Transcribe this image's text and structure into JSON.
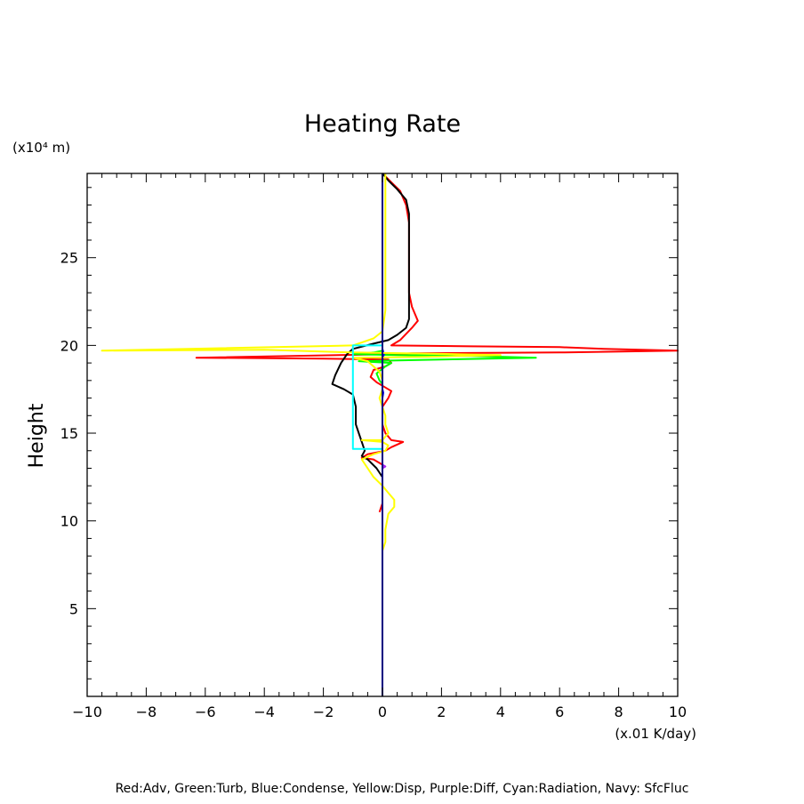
{
  "chart_data": {
    "type": "line",
    "title": "Heating Rate",
    "xlabel": "",
    "ylabel": "Height",
    "x_unit": "(x.01 K/day)",
    "y_unit": "(x10⁴ m)",
    "xlim": [
      -10,
      10
    ],
    "ylim": [
      0,
      29.8
    ],
    "x_ticks": [
      -10,
      -8,
      -6,
      -4,
      -2,
      0,
      2,
      4,
      6,
      8,
      10
    ],
    "x_tick_labels": [
      "−10",
      "−8",
      "−6",
      "−4",
      "−2",
      "0",
      "2",
      "4",
      "6",
      "8",
      "10"
    ],
    "y_ticks": [
      5,
      10,
      15,
      20,
      25
    ],
    "y_tick_labels": [
      "5",
      "10",
      "15",
      "20",
      "25"
    ],
    "grid": false,
    "legend_note": "Red:Adv, Green:Turb, Blue:Condense, Yellow:Disp, Purple:Diff, Cyan:Radiation, Navy: SfcFluc",
    "series": [
      {
        "color": "#ff0000",
        "points": [
          [
            0,
            29.8
          ],
          [
            0.3,
            29.3
          ],
          [
            0.6,
            28.8
          ],
          [
            0.8,
            28.0
          ],
          [
            0.9,
            27
          ],
          [
            0.9,
            25
          ],
          [
            0.9,
            23
          ],
          [
            1.0,
            22.2
          ],
          [
            1.2,
            21.4
          ],
          [
            1.0,
            21.0
          ],
          [
            0.6,
            20.3
          ],
          [
            0.3,
            20.0
          ],
          [
            3,
            19.95
          ],
          [
            6,
            19.9
          ],
          [
            7.5,
            19.8
          ],
          [
            10,
            19.7
          ],
          [
            6,
            19.6
          ],
          [
            1,
            19.55
          ],
          [
            0.3,
            19.5
          ],
          [
            -6.3,
            19.3
          ],
          [
            -2,
            19.25
          ],
          [
            0.2,
            19.2
          ],
          [
            0.3,
            19.0
          ],
          [
            0.1,
            18.8
          ],
          [
            -0.3,
            18.6
          ],
          [
            -0.4,
            18.2
          ],
          [
            -0.2,
            17.9
          ],
          [
            0.1,
            17.6
          ],
          [
            0.3,
            17.4
          ],
          [
            0.2,
            17.0
          ],
          [
            0,
            16.5
          ],
          [
            0,
            15.5
          ],
          [
            0.1,
            15.0
          ],
          [
            0.3,
            14.6
          ],
          [
            0.7,
            14.5
          ],
          [
            0.3,
            14.2
          ],
          [
            0.1,
            14.0
          ],
          [
            -0.5,
            13.8
          ],
          [
            -0.7,
            13.6
          ],
          [
            -0.3,
            13.5
          ],
          [
            0,
            13.2
          ],
          [
            0,
            11
          ],
          [
            -0.1,
            10.5
          ]
        ]
      },
      {
        "color": "#000000",
        "points": [
          [
            0,
            29.8
          ],
          [
            0.2,
            29.4
          ],
          [
            0.5,
            28.9
          ],
          [
            0.8,
            28.3
          ],
          [
            0.9,
            27.5
          ],
          [
            0.9,
            25.5
          ],
          [
            0.9,
            23
          ],
          [
            0.9,
            21.5
          ],
          [
            0.8,
            21.0
          ],
          [
            0.5,
            20.6
          ],
          [
            0.2,
            20.3
          ],
          [
            -0.3,
            20.1
          ],
          [
            -1.0,
            19.8
          ],
          [
            -1.2,
            19.5
          ],
          [
            -1.4,
            19.0
          ],
          [
            -1.6,
            18.3
          ],
          [
            -1.7,
            17.8
          ],
          [
            -1.3,
            17.5
          ],
          [
            -1.0,
            17.2
          ],
          [
            -0.9,
            16.5
          ],
          [
            -0.9,
            15.5
          ],
          [
            -0.8,
            15.0
          ],
          [
            -0.7,
            14.5
          ],
          [
            -0.6,
            14.0
          ],
          [
            -0.7,
            13.7
          ],
          [
            -0.5,
            13.5
          ],
          [
            -0.2,
            13.0
          ],
          [
            0,
            12.5
          ],
          [
            0,
            8
          ]
        ]
      },
      {
        "color": "#00ff00",
        "points": [
          [
            0,
            19.7
          ],
          [
            -0.3,
            19.6
          ],
          [
            -1.0,
            19.5
          ],
          [
            0.5,
            19.45
          ],
          [
            3,
            19.4
          ],
          [
            5.2,
            19.3
          ],
          [
            2,
            19.2
          ],
          [
            -0.8,
            19.1
          ],
          [
            0.3,
            19.0
          ],
          [
            0.1,
            18.8
          ],
          [
            -0.2,
            18.4
          ],
          [
            -0.1,
            18.0
          ],
          [
            0,
            17.8
          ],
          [
            0,
            14.5
          ]
        ]
      },
      {
        "color": "#0000ff",
        "points": [
          [
            0,
            19.8
          ],
          [
            0.05,
            19.5
          ],
          [
            0,
            19.2
          ],
          [
            0,
            17.5
          ],
          [
            0.03,
            17.3
          ],
          [
            0,
            17.0
          ],
          [
            0,
            10.5
          ]
        ]
      },
      {
        "color": "#ffff00",
        "points": [
          [
            0.1,
            29.8
          ],
          [
            0.1,
            28
          ],
          [
            0.1,
            25
          ],
          [
            0.1,
            22
          ],
          [
            0,
            20.8
          ],
          [
            -0.3,
            20.4
          ],
          [
            -1.0,
            20.0
          ],
          [
            -9.5,
            19.7
          ],
          [
            -4.0,
            19.75
          ],
          [
            -1.0,
            19.6
          ],
          [
            2.5,
            19.5
          ],
          [
            4.0,
            19.45
          ],
          [
            1.5,
            19.35
          ],
          [
            -1.0,
            19.3
          ],
          [
            -0.5,
            19.1
          ],
          [
            -0.1,
            18.5
          ],
          [
            0,
            18.0
          ],
          [
            0,
            17.5
          ],
          [
            -0.1,
            17.0
          ],
          [
            0,
            16.5
          ],
          [
            0.1,
            16.0
          ],
          [
            0.1,
            15.5
          ],
          [
            0.2,
            15.0
          ],
          [
            0,
            14.6
          ],
          [
            -0.7,
            14.6
          ],
          [
            0,
            14.5
          ],
          [
            0.2,
            14.3
          ],
          [
            0.1,
            14.0
          ],
          [
            -0.3,
            13.8
          ],
          [
            -0.7,
            13.5
          ],
          [
            -0.5,
            13.0
          ],
          [
            -0.3,
            12.5
          ],
          [
            0,
            12.0
          ],
          [
            0.2,
            11.6
          ],
          [
            0.4,
            11.2
          ],
          [
            0.4,
            10.8
          ],
          [
            0.2,
            10.4
          ],
          [
            0.1,
            9.5
          ],
          [
            0.1,
            8.8
          ],
          [
            0,
            8.3
          ]
        ]
      },
      {
        "color": "#a020f0",
        "points": [
          [
            0,
            19.4
          ],
          [
            0,
            19.0
          ],
          [
            0,
            13.2
          ],
          [
            0.1,
            13.1
          ],
          [
            0,
            13.0
          ],
          [
            0,
            10.3
          ]
        ]
      },
      {
        "color": "#00ffff",
        "points": [
          [
            0,
            20.0
          ],
          [
            -1.0,
            20.0
          ],
          [
            -1.0,
            19.6
          ],
          [
            -1.0,
            14.1
          ],
          [
            0,
            14.1
          ],
          [
            0,
            13.8
          ]
        ]
      },
      {
        "color": "#000080",
        "points": [
          [
            0,
            29.8
          ],
          [
            0,
            0
          ]
        ]
      }
    ]
  }
}
